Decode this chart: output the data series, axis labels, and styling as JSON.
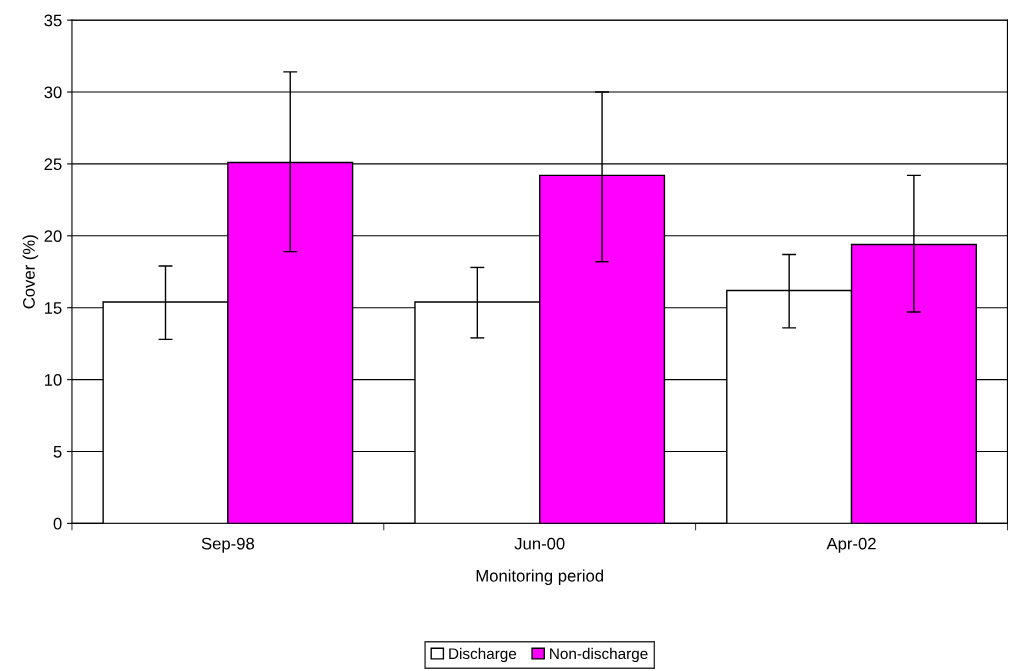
{
  "chart_data": {
    "type": "bar",
    "xlabel": "Monitoring period",
    "ylabel": "Cover (%)",
    "categories": [
      "Sep-98",
      "Jun-00",
      "Apr-02"
    ],
    "series": [
      {
        "name": "Discharge",
        "color": "#ffffff",
        "values": [
          15.4,
          15.4,
          16.2
        ],
        "errors": [
          [
            12.8,
            17.9
          ],
          [
            12.9,
            17.8
          ],
          [
            13.6,
            18.7
          ]
        ]
      },
      {
        "name": "Non-discharge",
        "color": "#ff00ff",
        "values": [
          25.1,
          24.2,
          19.4
        ],
        "errors": [
          [
            18.9,
            31.4
          ],
          [
            18.2,
            30.0
          ],
          [
            14.7,
            24.2
          ]
        ]
      }
    ],
    "ylim": [
      0,
      35
    ],
    "yticks": [
      0,
      5,
      10,
      15,
      20,
      25,
      30,
      35
    ],
    "grid": "y",
    "legend": "bottom"
  }
}
